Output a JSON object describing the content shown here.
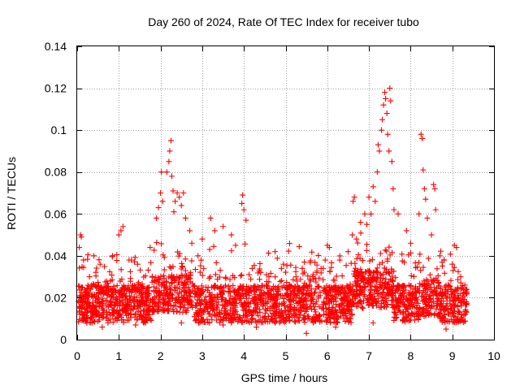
{
  "chart_data": {
    "type": "scatter",
    "title": "Day 260 of 2024, Rate Of TEC Index for receiver tubo",
    "xlabel": "GPS time / hours",
    "ylabel": "ROTI / TECUs",
    "xlim": [
      0,
      10
    ],
    "ylim": [
      0,
      0.14
    ],
    "xticks": [
      0,
      1,
      2,
      3,
      4,
      5,
      6,
      7,
      8,
      9,
      10
    ],
    "yticks": [
      0,
      0.02,
      0.04,
      0.06,
      0.08,
      0.1,
      0.12,
      0.14
    ],
    "xtick_labels": [
      "0",
      "1",
      "2",
      "3",
      "4",
      "5",
      "6",
      "7",
      "8",
      "9",
      "10"
    ],
    "ytick_labels": [
      "0",
      "0.02",
      "0.04",
      "0.06",
      "0.08",
      "0.1",
      "0.12",
      "0.14"
    ],
    "grid": true,
    "marker": "+",
    "color": "#ff0000",
    "series": [
      {
        "name": "ROTI",
        "points": [
          [
            0.05,
            0.044
          ],
          [
            0.08,
            0.05
          ],
          [
            0.1,
            0.049
          ],
          [
            0.15,
            0.038
          ],
          [
            0.4,
            0.04
          ],
          [
            0.55,
            0.036
          ],
          [
            0.85,
            0.04
          ],
          [
            1.0,
            0.05
          ],
          [
            1.05,
            0.052
          ],
          [
            1.1,
            0.054
          ],
          [
            1.3,
            0.038
          ],
          [
            1.45,
            0.036
          ],
          [
            1.75,
            0.044
          ],
          [
            1.9,
            0.058
          ],
          [
            1.95,
            0.063
          ],
          [
            2.0,
            0.07
          ],
          [
            2.02,
            0.08
          ],
          [
            2.05,
            0.066
          ],
          [
            2.15,
            0.08
          ],
          [
            2.2,
            0.085
          ],
          [
            2.22,
            0.09
          ],
          [
            2.25,
            0.095
          ],
          [
            2.27,
            0.078
          ],
          [
            2.3,
            0.071
          ],
          [
            2.32,
            0.061
          ],
          [
            2.35,
            0.066
          ],
          [
            2.4,
            0.07
          ],
          [
            2.45,
            0.068
          ],
          [
            2.5,
            0.064
          ],
          [
            2.55,
            0.07
          ],
          [
            2.6,
            0.058
          ],
          [
            2.7,
            0.052
          ],
          [
            2.75,
            0.046
          ],
          [
            2.9,
            0.04
          ],
          [
            3.0,
            0.048
          ],
          [
            3.2,
            0.058
          ],
          [
            3.3,
            0.052
          ],
          [
            3.5,
            0.054
          ],
          [
            3.7,
            0.05
          ],
          [
            3.8,
            0.045
          ],
          [
            3.95,
            0.065
          ],
          [
            3.97,
            0.069
          ],
          [
            4.0,
            0.062
          ],
          [
            4.05,
            0.057
          ],
          [
            4.2,
            0.034
          ],
          [
            4.4,
            0.032
          ],
          [
            4.6,
            0.03
          ],
          [
            4.75,
            0.03
          ],
          [
            4.9,
            0.034
          ],
          [
            4.95,
            0.036
          ],
          [
            5.1,
            0.026
          ],
          [
            5.25,
            0.03
          ],
          [
            5.4,
            0.034
          ],
          [
            5.45,
            0.037
          ],
          [
            5.6,
            0.028
          ],
          [
            5.75,
            0.032
          ],
          [
            5.9,
            0.034
          ],
          [
            5.95,
            0.038
          ],
          [
            6.0,
            0.045
          ],
          [
            6.05,
            0.044
          ],
          [
            6.3,
            0.038
          ],
          [
            6.5,
            0.042
          ],
          [
            6.6,
            0.05
          ],
          [
            6.62,
            0.066
          ],
          [
            6.65,
            0.068
          ],
          [
            6.7,
            0.048
          ],
          [
            6.8,
            0.056
          ],
          [
            6.9,
            0.06
          ],
          [
            6.95,
            0.055
          ],
          [
            7.0,
            0.068
          ],
          [
            7.05,
            0.06
          ],
          [
            7.1,
            0.073
          ],
          [
            7.15,
            0.066
          ],
          [
            7.2,
            0.08
          ],
          [
            7.22,
            0.093
          ],
          [
            7.25,
            0.09
          ],
          [
            7.3,
            0.1
          ],
          [
            7.32,
            0.105
          ],
          [
            7.35,
            0.112
          ],
          [
            7.38,
            0.118
          ],
          [
            7.4,
            0.115
          ],
          [
            7.43,
            0.108
          ],
          [
            7.45,
            0.098
          ],
          [
            7.48,
            0.09
          ],
          [
            7.5,
            0.12
          ],
          [
            7.52,
            0.114
          ],
          [
            7.55,
            0.085
          ],
          [
            7.58,
            0.072
          ],
          [
            7.6,
            0.062
          ],
          [
            7.7,
            0.06
          ],
          [
            7.9,
            0.052
          ],
          [
            8.0,
            0.046
          ],
          [
            8.2,
            0.06
          ],
          [
            8.25,
            0.098
          ],
          [
            8.28,
            0.096
          ],
          [
            8.3,
            0.081
          ],
          [
            8.33,
            0.072
          ],
          [
            8.36,
            0.067
          ],
          [
            8.4,
            0.058
          ],
          [
            8.5,
            0.05
          ],
          [
            8.55,
            0.074
          ],
          [
            8.58,
            0.072
          ],
          [
            8.6,
            0.062
          ],
          [
            8.7,
            0.04
          ],
          [
            8.8,
            0.038
          ],
          [
            9.0,
            0.036
          ],
          [
            9.05,
            0.045
          ],
          [
            9.1,
            0.044
          ],
          [
            9.2,
            0.03
          ],
          [
            9.3,
            0.026
          ],
          [
            9.35,
            0.022
          ],
          [
            1.4,
            0.007
          ],
          [
            2.5,
            0.008
          ],
          [
            3.5,
            0.007
          ],
          [
            4.3,
            0.006
          ],
          [
            5.5,
            0.003
          ],
          [
            6.2,
            0.006
          ],
          [
            7.1,
            0.008
          ],
          [
            8.85,
            0.005
          ],
          [
            0.6,
            0.006
          ]
        ]
      }
    ]
  }
}
